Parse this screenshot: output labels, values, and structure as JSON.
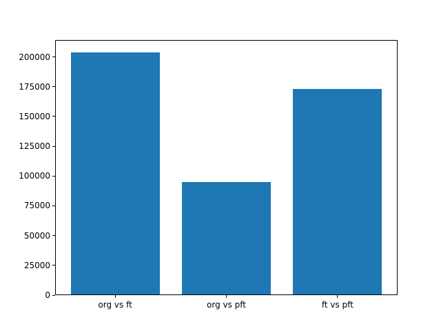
{
  "chart_data": {
    "type": "bar",
    "categories": [
      "org vs ft",
      "org vs pft",
      "ft vs pft"
    ],
    "values": [
      204000,
      95000,
      173000
    ],
    "title": "",
    "xlabel": "",
    "ylabel": "",
    "ylim": [
      0,
      214200
    ],
    "yticks": [
      0,
      25000,
      50000,
      75000,
      100000,
      125000,
      150000,
      175000,
      200000
    ],
    "bar_width_fraction": 0.8,
    "grid": false,
    "legend": null,
    "bar_color": "#1f77b4",
    "axes_color": "#000000",
    "background_color": "#ffffff"
  }
}
